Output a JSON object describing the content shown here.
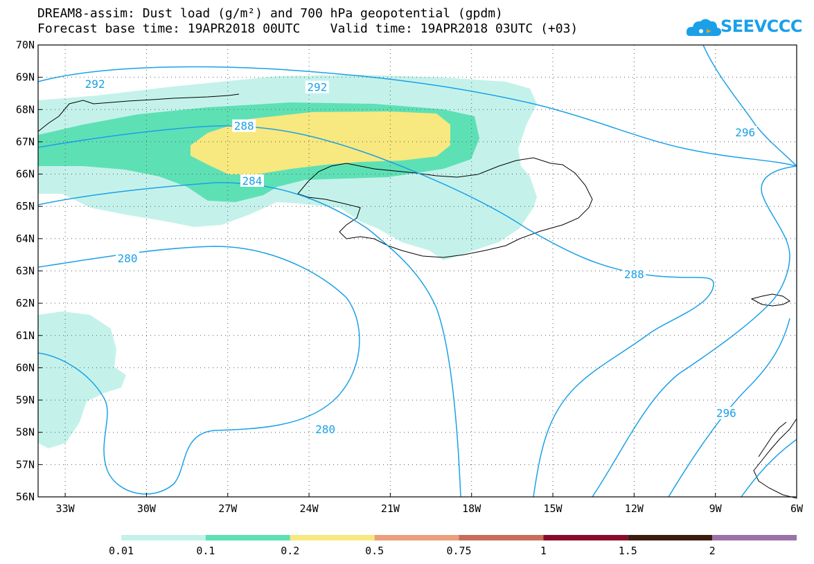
{
  "title_line1": "DREAM8-assim: Dust load (g/m²) and 700 hPa geopotential (gpdm)",
  "title_line2": "Forecast base time: 19APR2018 00UTC    Valid time: 19APR2018 03UTC (+03)",
  "logo": {
    "text": "SEEVCCC",
    "icon": "cloud-logo-icon"
  },
  "map": {
    "lon_range": [
      -34,
      -6
    ],
    "lat_range": [
      56,
      70
    ],
    "lon_labels": [
      {
        "lon": -33,
        "text": "33W"
      },
      {
        "lon": -30,
        "text": "30W"
      },
      {
        "lon": -27,
        "text": "27W"
      },
      {
        "lon": -24,
        "text": "24W"
      },
      {
        "lon": -21,
        "text": "21W"
      },
      {
        "lon": -18,
        "text": "18W"
      },
      {
        "lon": -15,
        "text": "15W"
      },
      {
        "lon": -12,
        "text": "12W"
      },
      {
        "lon": -9,
        "text": "9W"
      },
      {
        "lon": -6,
        "text": "6W"
      }
    ],
    "lat_labels": [
      {
        "lat": 70,
        "text": "70N"
      },
      {
        "lat": 69,
        "text": "69N"
      },
      {
        "lat": 68,
        "text": "68N"
      },
      {
        "lat": 67,
        "text": "67N"
      },
      {
        "lat": 66,
        "text": "66N"
      },
      {
        "lat": 65,
        "text": "65N"
      },
      {
        "lat": 64,
        "text": "64N"
      },
      {
        "lat": 63,
        "text": "63N"
      },
      {
        "lat": 62,
        "text": "62N"
      },
      {
        "lat": 61,
        "text": "61N"
      },
      {
        "lat": 60,
        "text": "60N"
      },
      {
        "lat": 59,
        "text": "59N"
      },
      {
        "lat": 58,
        "text": "58N"
      },
      {
        "lat": 57,
        "text": "57N"
      },
      {
        "lat": 56,
        "text": "56N"
      }
    ],
    "contour_labels": [
      {
        "text": "292",
        "lon": -31.9,
        "lat": 68.8
      },
      {
        "text": "292",
        "lon": -23.7,
        "lat": 68.7
      },
      {
        "text": "296",
        "lon": -7.9,
        "lat": 67.3
      },
      {
        "text": "288",
        "lon": -26.4,
        "lat": 67.5
      },
      {
        "text": "284",
        "lon": -26.1,
        "lat": 65.8
      },
      {
        "text": "280",
        "lon": -30.7,
        "lat": 63.4
      },
      {
        "text": "288",
        "lon": -12.0,
        "lat": 62.9
      },
      {
        "text": "280",
        "lon": -23.4,
        "lat": 58.1
      },
      {
        "text": "296",
        "lon": -8.6,
        "lat": 58.6
      }
    ]
  },
  "colorbar": {
    "colors": [
      "#c4f2ea",
      "#5ee0b5",
      "#f7e87f",
      "#ec9f7d",
      "#c86c5a",
      "#8a0a2c",
      "#3a1d0f",
      "#9b72a8"
    ],
    "labels": [
      "0.01",
      "0.1",
      "0.2",
      "0.5",
      "0.75",
      "1",
      "1.5",
      "2"
    ]
  }
}
